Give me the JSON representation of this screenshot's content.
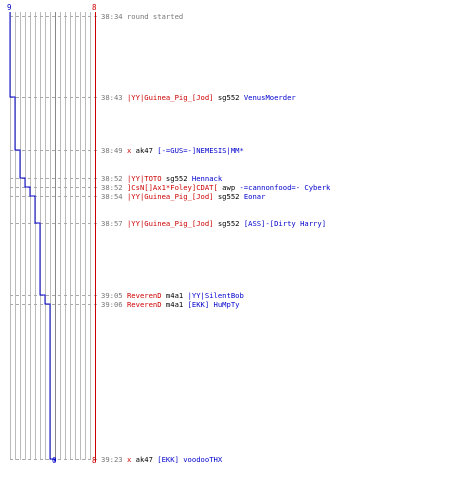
{
  "scores": {
    "top_blue": "9",
    "top_red": "8",
    "bottom_blue": "0",
    "bottom_red": "8"
  },
  "colors": {
    "team_red": "#cc0000",
    "team_blue": "#0000cc",
    "timestamp": "#777777",
    "grid": "#bbbbbb"
  },
  "events": [
    {
      "time": "38:34",
      "note": "round started"
    },
    {
      "time": "38:43",
      "killer": "|YY|Guinea_Pig_[Jod]",
      "weapon": "sg552",
      "victim": "VenusMoerder"
    },
    {
      "time": "38:49",
      "killer": "x",
      "weapon": "ak47",
      "victim": "[-=GUS=-]NEMESIS|MM*"
    },
    {
      "time": "38:52",
      "killer": "|YY|TOTO",
      "weapon": "sg552",
      "victim": "Hennack"
    },
    {
      "time": "38:52",
      "killer": "]CsN[]Ax1*Foley]CDAT[",
      "weapon": "awp",
      "victim": "-=cannonfood=- Cyberk"
    },
    {
      "time": "38:54",
      "killer": "|YY|Guinea_Pig_[Jod]",
      "weapon": "sg552",
      "victim": "Eonar"
    },
    {
      "time": "38:57",
      "killer": "|YY|Guinea_Pig_[Jod]",
      "weapon": "sg552",
      "victim": "[ASS]-[Dirty Harry]"
    },
    {
      "time": "39:05",
      "killer": "ReverenD",
      "weapon": "m4a1",
      "victim": "|YY|SilentBob"
    },
    {
      "time": "39:06",
      "killer": "ReverenD",
      "weapon": "m4a1",
      "victim": "[EKK] HuMpTy"
    },
    {
      "time": "39:23",
      "killer": "x",
      "weapon": "ak47",
      "victim": "[EKK] voodooTHX"
    }
  ]
}
